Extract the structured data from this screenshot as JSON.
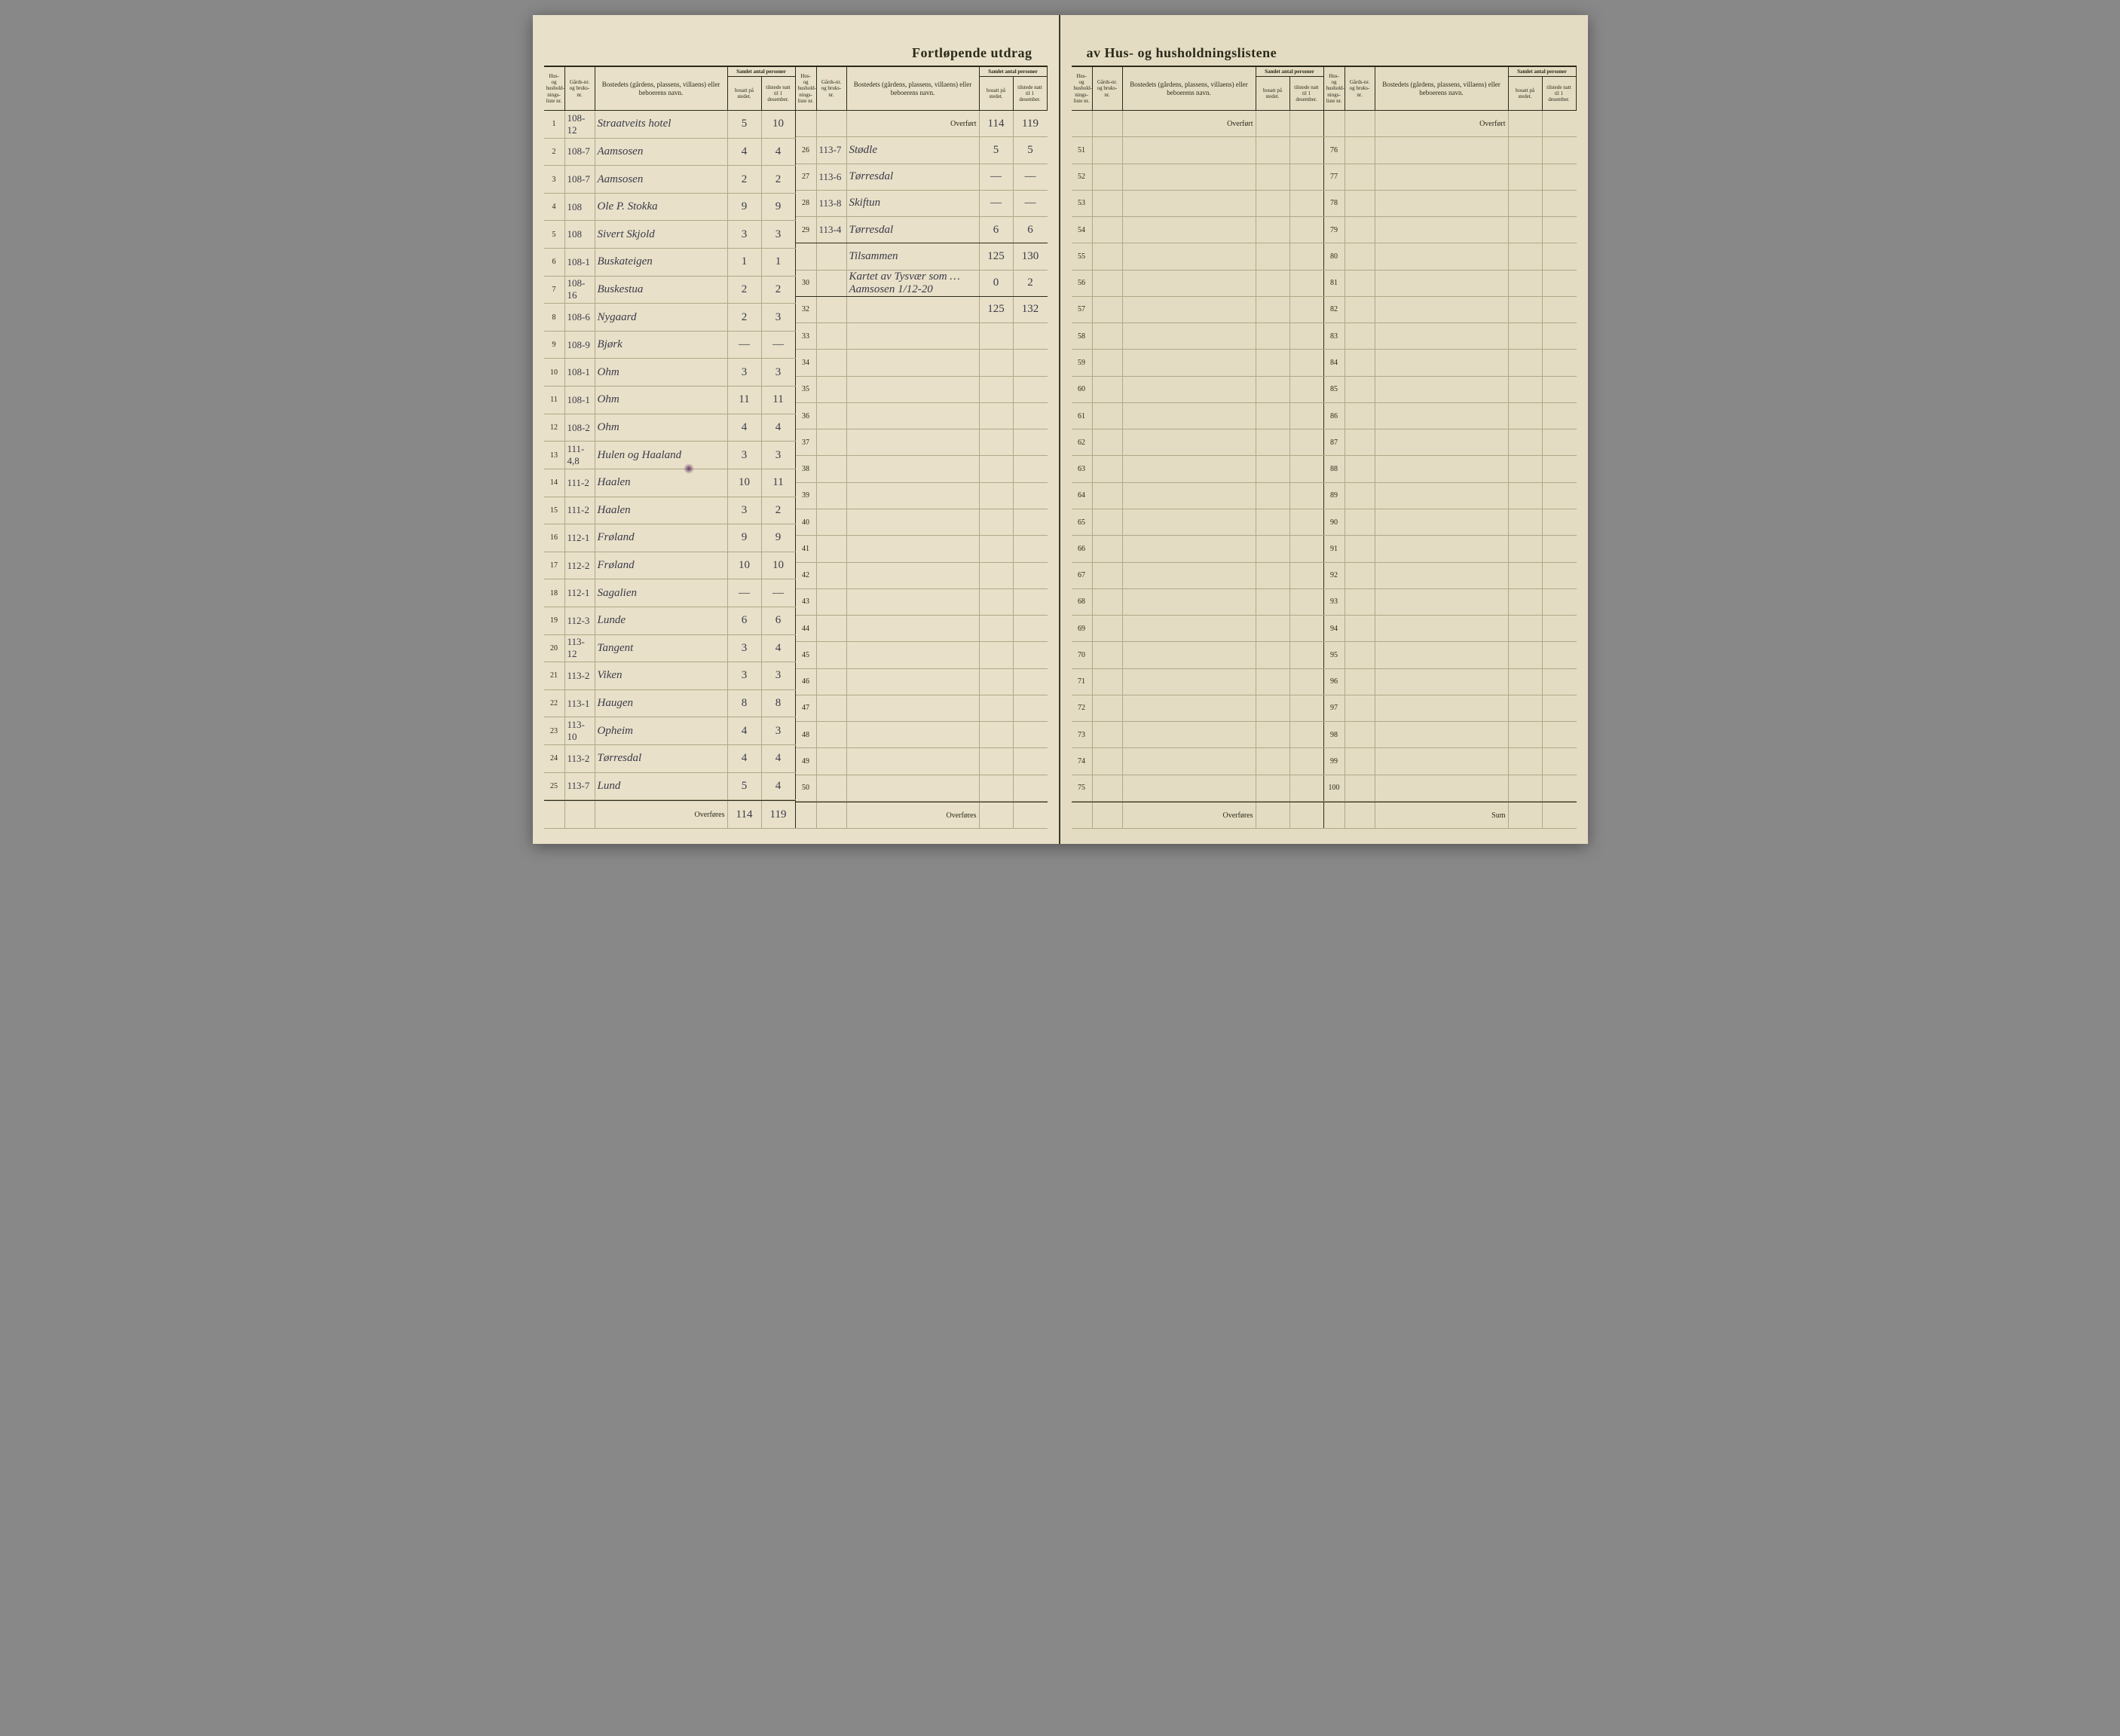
{
  "title_left": "Fortløpende utdrag",
  "title_right": "av Hus- og husholdningslistene",
  "headers": {
    "nr": "Hus- og hushold-nings-liste nr.",
    "gard": "Gårds-nr. og bruks-nr.",
    "bosted": "Bostedets (gårdens, plassens, villaens) eller beboerens navn.",
    "samlet": "Samlet antal personer",
    "bosatt": "bosatt på stedet.",
    "tilstede": "tilstede natt til 1 desember."
  },
  "overfort_label": "Overført",
  "overfores_label": "Overføres",
  "tilsammen_label": "Tilsammen",
  "sum_label": "Sum",
  "colors": {
    "paper": "#e8e0c8",
    "paper_right": "#e4dcc2",
    "ink_print": "#2a2a1a",
    "ink_hand": "#3a3a4a",
    "rule_light": "#b0a888"
  },
  "left_page": {
    "col1": {
      "rows": [
        {
          "n": "1",
          "g": "108-12",
          "b": "Straatveits hotel",
          "v1": "5",
          "v2": "10"
        },
        {
          "n": "2",
          "g": "108-7",
          "b": "Aamsosen",
          "v1": "4",
          "v2": "4"
        },
        {
          "n": "3",
          "g": "108-7",
          "b": "Aamsosen",
          "v1": "2",
          "v2": "2"
        },
        {
          "n": "4",
          "g": "108",
          "b": "Ole P. Stokka",
          "v1": "9",
          "v2": "9"
        },
        {
          "n": "5",
          "g": "108",
          "b": "Sivert Skjold",
          "v1": "3",
          "v2": "3"
        },
        {
          "n": "6",
          "g": "108-1",
          "b": "Buskateigen",
          "v1": "1",
          "v2": "1"
        },
        {
          "n": "7",
          "g": "108-16",
          "b": "Buskestua",
          "v1": "2",
          "v2": "2"
        },
        {
          "n": "8",
          "g": "108-6",
          "b": "Nygaard",
          "v1": "2",
          "v2": "3"
        },
        {
          "n": "9",
          "g": "108-9",
          "b": "Bjørk",
          "v1": "—",
          "v2": "—"
        },
        {
          "n": "10",
          "g": "108-1",
          "b": "Ohm",
          "v1": "3",
          "v2": "3"
        },
        {
          "n": "11",
          "g": "108-1",
          "b": "Ohm",
          "v1": "11",
          "v2": "11"
        },
        {
          "n": "12",
          "g": "108-2",
          "b": "Ohm",
          "v1": "4",
          "v2": "4"
        },
        {
          "n": "13",
          "g": "111-4,8",
          "b": "Hulen og Haaland",
          "v1": "3",
          "v2": "3"
        },
        {
          "n": "14",
          "g": "111-2",
          "b": "Haalen",
          "v1": "10",
          "v2": "11"
        },
        {
          "n": "15",
          "g": "111-2",
          "b": "Haalen",
          "v1": "3",
          "v2": "2"
        },
        {
          "n": "16",
          "g": "112-1",
          "b": "Frøland",
          "v1": "9",
          "v2": "9"
        },
        {
          "n": "17",
          "g": "112-2",
          "b": "Frøland",
          "v1": "10",
          "v2": "10"
        },
        {
          "n": "18",
          "g": "112-1",
          "b": "Sagalien",
          "v1": "—",
          "v2": "—"
        },
        {
          "n": "19",
          "g": "112-3",
          "b": "Lunde",
          "v1": "6",
          "v2": "6"
        },
        {
          "n": "20",
          "g": "113-12",
          "b": "Tangent",
          "v1": "3",
          "v2": "4"
        },
        {
          "n": "21",
          "g": "113-2",
          "b": "Viken",
          "v1": "3",
          "v2": "3"
        },
        {
          "n": "22",
          "g": "113-1",
          "b": "Haugen",
          "v1": "8",
          "v2": "8"
        },
        {
          "n": "23",
          "g": "113-10",
          "b": "Opheim",
          "v1": "4",
          "v2": "3"
        },
        {
          "n": "24",
          "g": "113-2",
          "b": "Tørresdal",
          "v1": "4",
          "v2": "4"
        },
        {
          "n": "25",
          "g": "113-7",
          "b": "Lund",
          "v1": "5",
          "v2": "4"
        }
      ],
      "overfores": {
        "v1": "114",
        "v2": "119"
      }
    },
    "col2": {
      "overfort": {
        "v1": "114",
        "v2": "119"
      },
      "rows": [
        {
          "n": "26",
          "g": "113-7",
          "b": "Stødle",
          "v1": "5",
          "v2": "5"
        },
        {
          "n": "27",
          "g": "113-6",
          "b": "Tørresdal",
          "v1": "—",
          "v2": "—"
        },
        {
          "n": "28",
          "g": "113-8",
          "b": "Skiftun",
          "v1": "—",
          "v2": "—"
        },
        {
          "n": "29",
          "g": "113-4",
          "b": "Tørresdal",
          "v1": "6",
          "v2": "6",
          "underline": true
        },
        {
          "n": "",
          "g": "",
          "b": "Tilsammen",
          "v1": "125",
          "v2": "130"
        },
        {
          "n": "30",
          "g": "",
          "b": "Kartet av Tysvær som … Aamsosen 1/12-20",
          "v1": "0",
          "v2": "2",
          "underline": true
        },
        {
          "n": "32",
          "g": "",
          "b": "",
          "v1": "125",
          "v2": "132"
        },
        {
          "n": "33",
          "g": "",
          "b": "",
          "v1": "",
          "v2": ""
        },
        {
          "n": "34",
          "g": "",
          "b": "",
          "v1": "",
          "v2": ""
        },
        {
          "n": "35",
          "g": "",
          "b": "",
          "v1": "",
          "v2": ""
        },
        {
          "n": "36",
          "g": "",
          "b": "",
          "v1": "",
          "v2": ""
        },
        {
          "n": "37",
          "g": "",
          "b": "",
          "v1": "",
          "v2": ""
        },
        {
          "n": "38",
          "g": "",
          "b": "",
          "v1": "",
          "v2": ""
        },
        {
          "n": "39",
          "g": "",
          "b": "",
          "v1": "",
          "v2": ""
        },
        {
          "n": "40",
          "g": "",
          "b": "",
          "v1": "",
          "v2": ""
        },
        {
          "n": "41",
          "g": "",
          "b": "",
          "v1": "",
          "v2": ""
        },
        {
          "n": "42",
          "g": "",
          "b": "",
          "v1": "",
          "v2": ""
        },
        {
          "n": "43",
          "g": "",
          "b": "",
          "v1": "",
          "v2": ""
        },
        {
          "n": "44",
          "g": "",
          "b": "",
          "v1": "",
          "v2": ""
        },
        {
          "n": "45",
          "g": "",
          "b": "",
          "v1": "",
          "v2": ""
        },
        {
          "n": "46",
          "g": "",
          "b": "",
          "v1": "",
          "v2": ""
        },
        {
          "n": "47",
          "g": "",
          "b": "",
          "v1": "",
          "v2": ""
        },
        {
          "n": "48",
          "g": "",
          "b": "",
          "v1": "",
          "v2": ""
        },
        {
          "n": "49",
          "g": "",
          "b": "",
          "v1": "",
          "v2": ""
        },
        {
          "n": "50",
          "g": "",
          "b": "",
          "v1": "",
          "v2": ""
        }
      ],
      "overfores": {
        "v1": "",
        "v2": ""
      }
    }
  },
  "right_page": {
    "col1": {
      "overfort": {
        "v1": "",
        "v2": ""
      },
      "rows": [
        {
          "n": "51"
        },
        {
          "n": "52"
        },
        {
          "n": "53"
        },
        {
          "n": "54"
        },
        {
          "n": "55"
        },
        {
          "n": "56"
        },
        {
          "n": "57"
        },
        {
          "n": "58"
        },
        {
          "n": "59"
        },
        {
          "n": "60"
        },
        {
          "n": "61"
        },
        {
          "n": "62"
        },
        {
          "n": "63"
        },
        {
          "n": "64"
        },
        {
          "n": "65"
        },
        {
          "n": "66"
        },
        {
          "n": "67"
        },
        {
          "n": "68"
        },
        {
          "n": "69"
        },
        {
          "n": "70"
        },
        {
          "n": "71"
        },
        {
          "n": "72"
        },
        {
          "n": "73"
        },
        {
          "n": "74"
        },
        {
          "n": "75"
        }
      ],
      "overfores": {
        "v1": "",
        "v2": ""
      }
    },
    "col2": {
      "overfort": {
        "v1": "",
        "v2": ""
      },
      "rows": [
        {
          "n": "76"
        },
        {
          "n": "77"
        },
        {
          "n": "78"
        },
        {
          "n": "79"
        },
        {
          "n": "80"
        },
        {
          "n": "81"
        },
        {
          "n": "82"
        },
        {
          "n": "83"
        },
        {
          "n": "84"
        },
        {
          "n": "85"
        },
        {
          "n": "86"
        },
        {
          "n": "87"
        },
        {
          "n": "88"
        },
        {
          "n": "89"
        },
        {
          "n": "90"
        },
        {
          "n": "91"
        },
        {
          "n": "92"
        },
        {
          "n": "93"
        },
        {
          "n": "94"
        },
        {
          "n": "95"
        },
        {
          "n": "96"
        },
        {
          "n": "97"
        },
        {
          "n": "98"
        },
        {
          "n": "99"
        },
        {
          "n": "100"
        }
      ],
      "sum": {
        "v1": "",
        "v2": ""
      }
    }
  }
}
